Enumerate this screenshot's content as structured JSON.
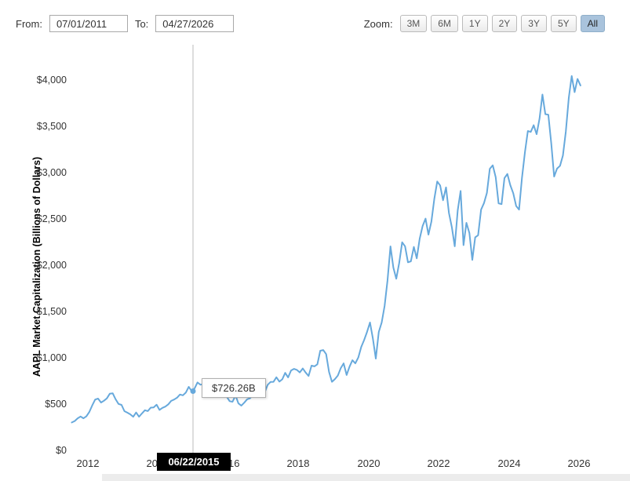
{
  "toolbar": {
    "from_label": "From:",
    "from_value": "07/01/2011",
    "to_label": "To:",
    "to_value": "04/27/2026",
    "zoom_label": "Zoom:",
    "zoom_buttons": [
      {
        "label": "3M",
        "active": false
      },
      {
        "label": "6M",
        "active": false
      },
      {
        "label": "1Y",
        "active": false
      },
      {
        "label": "2Y",
        "active": false
      },
      {
        "label": "3Y",
        "active": false
      },
      {
        "label": "5Y",
        "active": false
      },
      {
        "label": "All",
        "active": true
      }
    ]
  },
  "colors": {
    "line": "#67a9dc",
    "active_button_bg": "#a9c3dc",
    "crosshair": "#bbbbbb",
    "date_tooltip_bg": "#000000",
    "date_tooltip_text": "#ffffff"
  },
  "chart_data": {
    "type": "line",
    "title": "",
    "xlabel": "",
    "ylabel": "AAPL Market Capitalization (Billions of Dollars)",
    "units": "Billions of Dollars",
    "grid": false,
    "legend": "none",
    "ylim": [
      0,
      4250
    ],
    "x_range": [
      "2011-07",
      "2026-04"
    ],
    "y_ticks": [
      "$0",
      "$500",
      "$1,000",
      "$1,500",
      "$2,000",
      "$2,500",
      "$3,000",
      "$3,500",
      "$4,000"
    ],
    "x_ticks": [
      "2012",
      "2014",
      "2016",
      "2018",
      "2020",
      "2022",
      "2024",
      "2026"
    ],
    "line_color": "#67a9dc",
    "tooltip": {
      "date": "06/22/2015",
      "value_label": "$726.26B",
      "value": 726.26
    },
    "series": [
      {
        "name": "AAPL Market Cap ($B)",
        "points": [
          [
            "2011-07",
            310
          ],
          [
            "2011-08",
            325
          ],
          [
            "2011-09",
            355
          ],
          [
            "2011-10",
            375
          ],
          [
            "2011-11",
            355
          ],
          [
            "2011-12",
            376
          ],
          [
            "2012-01",
            425
          ],
          [
            "2012-02",
            495
          ],
          [
            "2012-03",
            558
          ],
          [
            "2012-04",
            568
          ],
          [
            "2012-05",
            525
          ],
          [
            "2012-06",
            545
          ],
          [
            "2012-07",
            570
          ],
          [
            "2012-08",
            620
          ],
          [
            "2012-09",
            625
          ],
          [
            "2012-10",
            560
          ],
          [
            "2012-11",
            510
          ],
          [
            "2012-12",
            500
          ],
          [
            "2013-01",
            432
          ],
          [
            "2013-02",
            416
          ],
          [
            "2013-03",
            398
          ],
          [
            "2013-04",
            372
          ],
          [
            "2013-05",
            418
          ],
          [
            "2013-06",
            372
          ],
          [
            "2013-07",
            408
          ],
          [
            "2013-08",
            442
          ],
          [
            "2013-09",
            433
          ],
          [
            "2013-10",
            470
          ],
          [
            "2013-11",
            473
          ],
          [
            "2013-12",
            502
          ],
          [
            "2014-01",
            446
          ],
          [
            "2014-02",
            468
          ],
          [
            "2014-03",
            481
          ],
          [
            "2014-04",
            506
          ],
          [
            "2014-05",
            543
          ],
          [
            "2014-06",
            558
          ],
          [
            "2014-07",
            577
          ],
          [
            "2014-08",
            612
          ],
          [
            "2014-09",
            603
          ],
          [
            "2014-10",
            632
          ],
          [
            "2014-11",
            695
          ],
          [
            "2014-12",
            648
          ],
          [
            "2015-01",
            678
          ],
          [
            "2015-02",
            742
          ],
          [
            "2015-03",
            718
          ],
          [
            "2015-04",
            726
          ],
          [
            "2015-05",
            756
          ],
          [
            "2015-06",
            726
          ],
          [
            "2015-07",
            699
          ],
          [
            "2015-08",
            646
          ],
          [
            "2015-09",
            629
          ],
          [
            "2015-10",
            683
          ],
          [
            "2015-11",
            662
          ],
          [
            "2015-12",
            588
          ],
          [
            "2016-01",
            540
          ],
          [
            "2016-02",
            534
          ],
          [
            "2016-03",
            602
          ],
          [
            "2016-04",
            516
          ],
          [
            "2016-05",
            492
          ],
          [
            "2016-06",
            524
          ],
          [
            "2016-07",
            561
          ],
          [
            "2016-08",
            572
          ],
          [
            "2016-09",
            610
          ],
          [
            "2016-10",
            612
          ],
          [
            "2016-11",
            589
          ],
          [
            "2016-12",
            624
          ],
          [
            "2017-01",
            636
          ],
          [
            "2017-02",
            717
          ],
          [
            "2017-03",
            748
          ],
          [
            "2017-04",
            749
          ],
          [
            "2017-05",
            798
          ],
          [
            "2017-06",
            752
          ],
          [
            "2017-07",
            776
          ],
          [
            "2017-08",
            846
          ],
          [
            "2017-09",
            797
          ],
          [
            "2017-10",
            872
          ],
          [
            "2017-11",
            889
          ],
          [
            "2017-12",
            878
          ],
          [
            "2018-01",
            851
          ],
          [
            "2018-02",
            893
          ],
          [
            "2018-03",
            849
          ],
          [
            "2018-04",
            813
          ],
          [
            "2018-05",
            924
          ],
          [
            "2018-06",
            916
          ],
          [
            "2018-07",
            938
          ],
          [
            "2018-08",
            1085
          ],
          [
            "2018-09",
            1092
          ],
          [
            "2018-10",
            1048
          ],
          [
            "2018-11",
            856
          ],
          [
            "2018-12",
            749
          ],
          [
            "2019-01",
            779
          ],
          [
            "2019-02",
            817
          ],
          [
            "2019-03",
            896
          ],
          [
            "2019-04",
            948
          ],
          [
            "2019-05",
            823
          ],
          [
            "2019-06",
            913
          ],
          [
            "2019-07",
            982
          ],
          [
            "2019-08",
            948
          ],
          [
            "2019-09",
            1012
          ],
          [
            "2019-10",
            1125
          ],
          [
            "2019-11",
            1200
          ],
          [
            "2019-12",
            1287
          ],
          [
            "2020-01",
            1390
          ],
          [
            "2020-02",
            1215
          ],
          [
            "2020-03",
            1000
          ],
          [
            "2020-04",
            1288
          ],
          [
            "2020-05",
            1390
          ],
          [
            "2020-06",
            1568
          ],
          [
            "2020-07",
            1842
          ],
          [
            "2020-08",
            2212
          ],
          [
            "2020-09",
            1982
          ],
          [
            "2020-10",
            1863
          ],
          [
            "2020-11",
            2032
          ],
          [
            "2020-12",
            2256
          ],
          [
            "2021-01",
            2213
          ],
          [
            "2021-02",
            2040
          ],
          [
            "2021-03",
            2051
          ],
          [
            "2021-04",
            2206
          ],
          [
            "2021-05",
            2083
          ],
          [
            "2021-06",
            2293
          ],
          [
            "2021-07",
            2430
          ],
          [
            "2021-08",
            2512
          ],
          [
            "2021-09",
            2339
          ],
          [
            "2021-10",
            2477
          ],
          [
            "2021-11",
            2726
          ],
          [
            "2021-12",
            2913
          ],
          [
            "2022-01",
            2870
          ],
          [
            "2022-02",
            2710
          ],
          [
            "2022-03",
            2849
          ],
          [
            "2022-04",
            2574
          ],
          [
            "2022-05",
            2420
          ],
          [
            "2022-06",
            2213
          ],
          [
            "2022-07",
            2600
          ],
          [
            "2022-08",
            2810
          ],
          [
            "2022-09",
            2225
          ],
          [
            "2022-10",
            2466
          ],
          [
            "2022-11",
            2356
          ],
          [
            "2022-12",
            2066
          ],
          [
            "2023-01",
            2310
          ],
          [
            "2023-02",
            2332
          ],
          [
            "2023-03",
            2609
          ],
          [
            "2023-04",
            2680
          ],
          [
            "2023-05",
            2789
          ],
          [
            "2023-06",
            3050
          ],
          [
            "2023-07",
            3087
          ],
          [
            "2023-08",
            2960
          ],
          [
            "2023-09",
            2676
          ],
          [
            "2023-10",
            2669
          ],
          [
            "2023-11",
            2950
          ],
          [
            "2023-12",
            2994
          ],
          [
            "2024-01",
            2874
          ],
          [
            "2024-02",
            2786
          ],
          [
            "2024-03",
            2648
          ],
          [
            "2024-04",
            2609
          ],
          [
            "2024-05",
            2952
          ],
          [
            "2024-06",
            3230
          ],
          [
            "2024-07",
            3458
          ],
          [
            "2024-08",
            3448
          ],
          [
            "2024-09",
            3520
          ],
          [
            "2024-10",
            3424
          ],
          [
            "2024-11",
            3592
          ],
          [
            "2024-12",
            3852
          ],
          [
            "2025-01",
            3640
          ],
          [
            "2025-02",
            3634
          ],
          [
            "2025-03",
            3328
          ],
          [
            "2025-04",
            2966
          ],
          [
            "2025-05",
            3052
          ],
          [
            "2025-06",
            3082
          ],
          [
            "2025-07",
            3194
          ],
          [
            "2025-08",
            3452
          ],
          [
            "2025-09",
            3818
          ],
          [
            "2025-10",
            4052
          ],
          [
            "2025-11",
            3878
          ],
          [
            "2025-12",
            4020
          ],
          [
            "2026-01",
            3950
          ]
        ]
      }
    ]
  }
}
